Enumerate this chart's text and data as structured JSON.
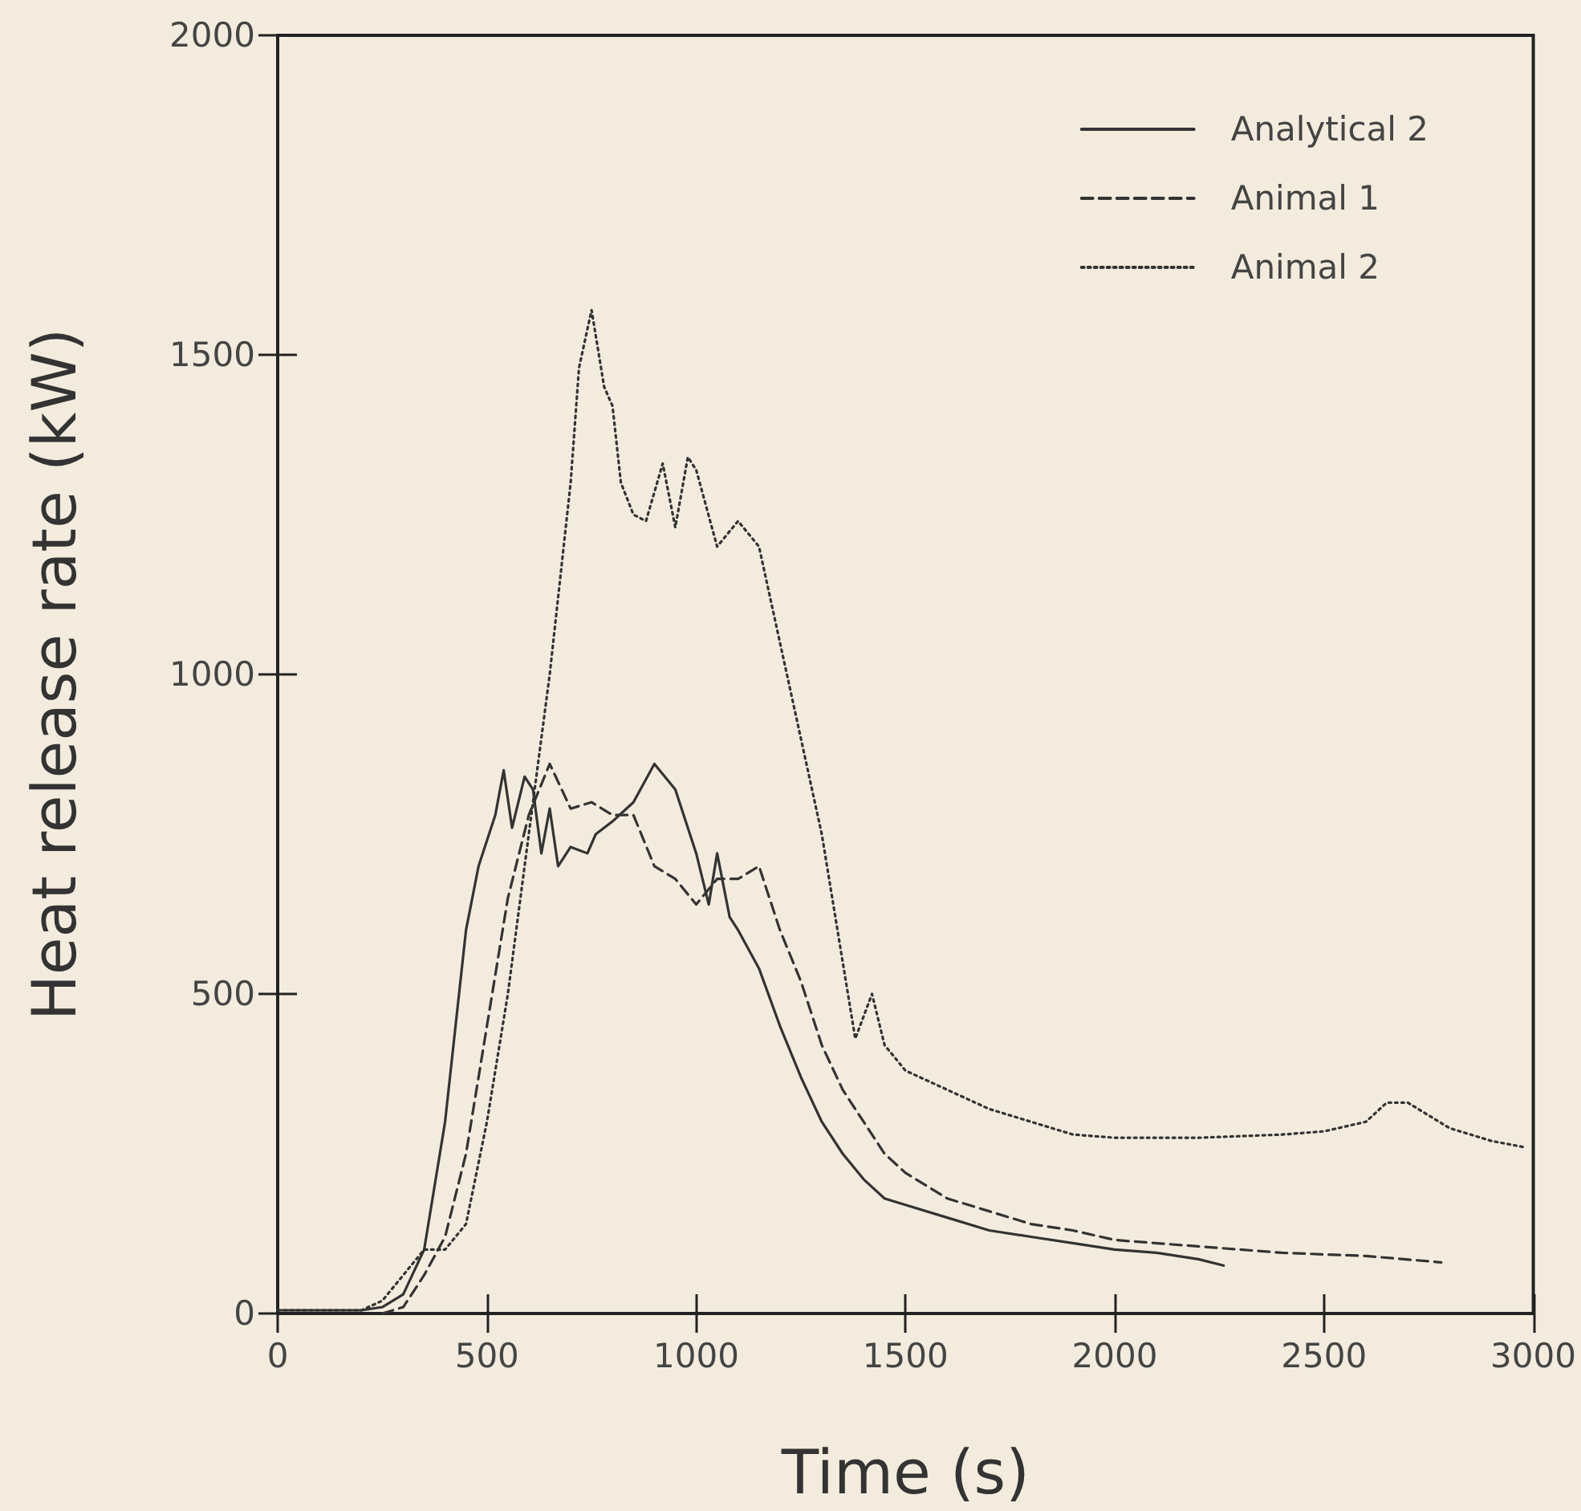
{
  "chart_data": {
    "type": "line",
    "xlabel": "Time (s)",
    "ylabel": "Heat release rate (kW)",
    "xlim": [
      0,
      3000
    ],
    "xticks": [
      0,
      500,
      1000,
      1500,
      2000,
      2500,
      3000
    ],
    "ylim": [
      0,
      2000
    ],
    "yticks": [
      0,
      500,
      1000,
      1500,
      2000
    ],
    "grid": false,
    "legend": "top right",
    "series": [
      {
        "name": "Analytical 2",
        "color": "#333333",
        "line_style": "solid",
        "x": [
          0,
          100,
          200,
          250,
          300,
          350,
          400,
          450,
          480,
          520,
          540,
          560,
          590,
          610,
          630,
          650,
          670,
          700,
          740,
          760,
          800,
          850,
          900,
          950,
          1000,
          1030,
          1050,
          1080,
          1100,
          1150,
          1200,
          1250,
          1300,
          1350,
          1400,
          1450,
          1500,
          1600,
          1700,
          1800,
          1900,
          2000,
          2100,
          2200,
          2260
        ],
        "values": [
          5,
          5,
          5,
          10,
          30,
          100,
          300,
          600,
          700,
          780,
          850,
          760,
          840,
          820,
          720,
          790,
          700,
          730,
          720,
          750,
          770,
          800,
          860,
          820,
          720,
          640,
          720,
          620,
          600,
          540,
          450,
          370,
          300,
          250,
          210,
          180,
          170,
          150,
          130,
          120,
          110,
          100,
          95,
          85,
          75
        ]
      },
      {
        "name": "Animal 1",
        "color": "#333333",
        "line_style": "dashed",
        "x": [
          250,
          300,
          350,
          400,
          450,
          500,
          550,
          600,
          650,
          700,
          750,
          800,
          850,
          900,
          950,
          1000,
          1050,
          1100,
          1150,
          1200,
          1250,
          1300,
          1350,
          1400,
          1450,
          1500,
          1600,
          1700,
          1800,
          1900,
          2000,
          2200,
          2400,
          2600,
          2780
        ],
        "values": [
          0,
          10,
          60,
          120,
          250,
          450,
          650,
          780,
          860,
          790,
          800,
          780,
          780,
          700,
          680,
          640,
          680,
          680,
          700,
          600,
          520,
          420,
          350,
          300,
          250,
          220,
          180,
          160,
          140,
          130,
          115,
          105,
          95,
          90,
          80
        ]
      },
      {
        "name": "Animal 2",
        "color": "#333333",
        "line_style": "dotted",
        "x": [
          0,
          100,
          200,
          250,
          300,
          350,
          400,
          450,
          500,
          550,
          600,
          650,
          700,
          720,
          750,
          780,
          800,
          820,
          850,
          880,
          920,
          950,
          980,
          1000,
          1050,
          1100,
          1150,
          1200,
          1250,
          1300,
          1350,
          1380,
          1420,
          1450,
          1500,
          1600,
          1700,
          1800,
          1900,
          2000,
          2200,
          2400,
          2500,
          2600,
          2650,
          2700,
          2750,
          2800,
          2900,
          2980
        ],
        "values": [
          5,
          5,
          5,
          20,
          60,
          100,
          100,
          140,
          300,
          500,
          750,
          1000,
          1300,
          1480,
          1570,
          1450,
          1420,
          1300,
          1250,
          1240,
          1330,
          1230,
          1340,
          1320,
          1200,
          1240,
          1200,
          1050,
          900,
          750,
          550,
          430,
          500,
          420,
          380,
          350,
          320,
          300,
          280,
          275,
          275,
          280,
          285,
          300,
          330,
          330,
          310,
          290,
          270,
          260
        ]
      }
    ]
  }
}
